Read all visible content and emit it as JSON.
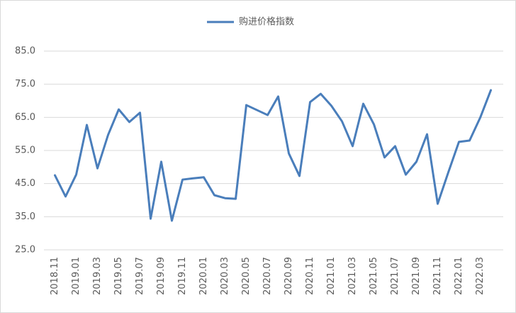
{
  "chart_data": {
    "type": "line",
    "categories": [
      "2018.11",
      null,
      "2019.01",
      null,
      "2019.03",
      null,
      "2019.05",
      null,
      "2019.07",
      null,
      "2019.09",
      null,
      "2019.11",
      null,
      "2020.01",
      null,
      "2020.03",
      null,
      "2020.05",
      null,
      "2020.07",
      null,
      "2020.09",
      null,
      "2020.11",
      null,
      "2021.01",
      null,
      "2021.03",
      null,
      "2021.05",
      null,
      "2021.07",
      null,
      "2021.09",
      null,
      "2021.11",
      null,
      "2022.01",
      null,
      "2022.03",
      null
    ],
    "series": [
      {
        "name": "购进价格指数",
        "color": "#4a7ebb",
        "values": [
          47.5,
          41.1,
          47.7,
          62.7,
          49.6,
          59.7,
          67.4,
          63.6,
          66.4,
          34.4,
          51.6,
          33.8,
          46.2,
          46.6,
          46.9,
          41.5,
          40.6,
          40.4,
          68.7,
          67.2,
          65.7,
          71.3,
          54.1,
          47.3,
          69.6,
          72.1,
          68.5,
          63.8,
          56.3,
          69.1,
          62.9,
          52.9,
          56.3,
          47.7,
          51.6,
          59.9,
          38.9,
          48.4,
          57.6,
          58.0,
          64.9,
          73.2
        ]
      }
    ],
    "ylim": [
      25,
      85
    ],
    "yticks": [
      {
        "value": 25,
        "label": "25.0"
      },
      {
        "value": 35,
        "label": "35.0"
      },
      {
        "value": 45,
        "label": "45.0"
      },
      {
        "value": 55,
        "label": "55.0"
      },
      {
        "value": 65,
        "label": "65.0"
      },
      {
        "value": 75,
        "label": "75.0"
      },
      {
        "value": 85,
        "label": "85.0"
      }
    ],
    "grid": true,
    "legend": "top"
  }
}
